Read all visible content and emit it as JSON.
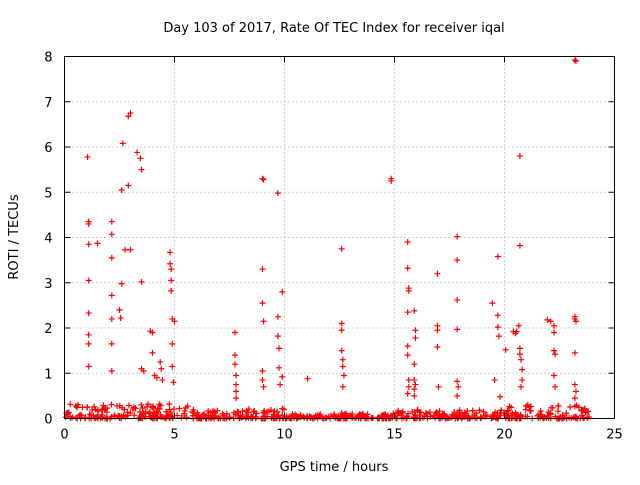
{
  "chart_data": {
    "type": "scatter",
    "title": "Day 103 of 2017, Rate Of TEC Index for receiver iqal",
    "xlabel": "GPS time / hours",
    "ylabel": "ROTI / TECUs",
    "xlim": [
      0,
      25
    ],
    "ylim": [
      0,
      8
    ],
    "xticks": [
      0,
      5,
      10,
      15,
      20,
      25
    ],
    "yticks": [
      0,
      1,
      2,
      3,
      4,
      5,
      6,
      7,
      8
    ],
    "xtick_labels": [
      "0",
      "5",
      "10",
      "15",
      "20",
      "25"
    ],
    "ytick_labels": [
      "0",
      "1",
      "2",
      "3",
      "4",
      "5",
      "6",
      "7",
      "8"
    ],
    "grid": true,
    "marker": "+",
    "color": "#ff0000",
    "series": [
      {
        "name": "ROTI",
        "points": [
          [
            1.05,
            5.78
          ],
          [
            1.1,
            4.35
          ],
          [
            1.1,
            4.3
          ],
          [
            1.1,
            3.85
          ],
          [
            1.1,
            3.05
          ],
          [
            1.1,
            2.33
          ],
          [
            1.1,
            1.85
          ],
          [
            1.1,
            1.65
          ],
          [
            1.1,
            1.15
          ],
          [
            1.5,
            3.87
          ],
          [
            2.15,
            4.35
          ],
          [
            2.15,
            4.07
          ],
          [
            2.15,
            3.55
          ],
          [
            2.15,
            2.72
          ],
          [
            2.15,
            2.2
          ],
          [
            2.15,
            1.65
          ],
          [
            2.15,
            1.05
          ],
          [
            2.5,
            2.4
          ],
          [
            2.55,
            2.22
          ],
          [
            2.6,
            2.98
          ],
          [
            2.65,
            6.08
          ],
          [
            2.6,
            5.05
          ],
          [
            2.75,
            3.73
          ],
          [
            2.9,
            6.68
          ],
          [
            2.9,
            5.15
          ],
          [
            3.0,
            6.75
          ],
          [
            3.0,
            3.73
          ],
          [
            3.3,
            5.88
          ],
          [
            3.45,
            5.75
          ],
          [
            3.5,
            5.5
          ],
          [
            3.5,
            3.02
          ],
          [
            3.5,
            1.1
          ],
          [
            3.6,
            1.05
          ],
          [
            3.9,
            1.93
          ],
          [
            4.0,
            1.9
          ],
          [
            4.0,
            1.45
          ],
          [
            4.1,
            0.95
          ],
          [
            4.2,
            0.9
          ],
          [
            4.35,
            1.25
          ],
          [
            4.4,
            1.1
          ],
          [
            4.45,
            0.85
          ],
          [
            4.8,
            3.67
          ],
          [
            4.8,
            3.42
          ],
          [
            4.85,
            3.3
          ],
          [
            4.85,
            3.05
          ],
          [
            4.85,
            2.82
          ],
          [
            4.9,
            2.2
          ],
          [
            5.0,
            2.15
          ],
          [
            4.9,
            1.65
          ],
          [
            4.9,
            1.15
          ],
          [
            4.95,
            0.8
          ],
          [
            7.75,
            1.9
          ],
          [
            7.75,
            1.4
          ],
          [
            7.75,
            1.2
          ],
          [
            7.8,
            0.95
          ],
          [
            7.8,
            0.75
          ],
          [
            7.8,
            0.6
          ],
          [
            7.8,
            0.45
          ],
          [
            9.0,
            5.3
          ],
          [
            9.05,
            5.28
          ],
          [
            9.0,
            3.3
          ],
          [
            9.0,
            2.55
          ],
          [
            9.05,
            2.15
          ],
          [
            9.0,
            1.05
          ],
          [
            9.0,
            0.85
          ],
          [
            9.05,
            0.7
          ],
          [
            9.7,
            4.98
          ],
          [
            9.7,
            2.25
          ],
          [
            9.7,
            1.82
          ],
          [
            9.75,
            1.55
          ],
          [
            9.75,
            1.12
          ],
          [
            9.8,
            0.75
          ],
          [
            9.9,
            2.8
          ],
          [
            9.9,
            0.92
          ],
          [
            11.05,
            0.88
          ],
          [
            12.6,
            3.75
          ],
          [
            12.6,
            2.1
          ],
          [
            12.6,
            1.95
          ],
          [
            12.6,
            1.5
          ],
          [
            12.65,
            1.3
          ],
          [
            12.65,
            1.15
          ],
          [
            12.7,
            0.95
          ],
          [
            12.65,
            0.7
          ],
          [
            14.85,
            5.3
          ],
          [
            14.85,
            5.25
          ],
          [
            15.6,
            3.9
          ],
          [
            15.6,
            3.32
          ],
          [
            15.65,
            2.88
          ],
          [
            15.65,
            2.82
          ],
          [
            15.6,
            2.35
          ],
          [
            15.6,
            1.6
          ],
          [
            15.6,
            1.4
          ],
          [
            15.65,
            0.85
          ],
          [
            15.65,
            0.7
          ],
          [
            15.6,
            0.55
          ],
          [
            15.9,
            2.38
          ],
          [
            15.95,
            1.95
          ],
          [
            15.95,
            1.78
          ],
          [
            15.9,
            1.2
          ],
          [
            15.9,
            0.85
          ],
          [
            15.95,
            0.75
          ],
          [
            15.9,
            0.65
          ],
          [
            15.9,
            0.5
          ],
          [
            16.95,
            3.2
          ],
          [
            16.95,
            2.05
          ],
          [
            16.95,
            1.95
          ],
          [
            16.95,
            1.58
          ],
          [
            17.0,
            0.7
          ],
          [
            17.85,
            4.02
          ],
          [
            17.85,
            3.5
          ],
          [
            17.85,
            2.62
          ],
          [
            17.85,
            1.97
          ],
          [
            17.85,
            0.82
          ],
          [
            17.9,
            0.7
          ],
          [
            17.85,
            0.5
          ],
          [
            19.45,
            2.55
          ],
          [
            19.55,
            0.85
          ],
          [
            19.7,
            2.28
          ],
          [
            19.7,
            3.58
          ],
          [
            19.7,
            2.02
          ],
          [
            19.75,
            1.82
          ],
          [
            19.8,
            0.48
          ],
          [
            20.05,
            1.52
          ],
          [
            20.4,
            1.92
          ],
          [
            20.5,
            1.88
          ],
          [
            20.55,
            1.92
          ],
          [
            20.65,
            2.05
          ],
          [
            20.7,
            1.55
          ],
          [
            20.7,
            1.42
          ],
          [
            20.75,
            1.3
          ],
          [
            20.8,
            1.08
          ],
          [
            20.8,
            0.85
          ],
          [
            20.75,
            0.7
          ],
          [
            20.7,
            5.8
          ],
          [
            20.7,
            3.82
          ],
          [
            21.95,
            2.18
          ],
          [
            22.1,
            2.15
          ],
          [
            22.25,
            2.05
          ],
          [
            22.25,
            1.9
          ],
          [
            22.25,
            1.5
          ],
          [
            22.3,
            1.42
          ],
          [
            22.25,
            0.95
          ],
          [
            22.3,
            0.7
          ],
          [
            23.2,
            7.92
          ],
          [
            23.25,
            7.9
          ],
          [
            23.2,
            2.25
          ],
          [
            23.2,
            2.2
          ],
          [
            23.25,
            2.15
          ],
          [
            23.2,
            1.45
          ],
          [
            23.2,
            0.75
          ],
          [
            23.25,
            0.6
          ],
          [
            23.2,
            0.45
          ]
        ]
      }
    ]
  }
}
